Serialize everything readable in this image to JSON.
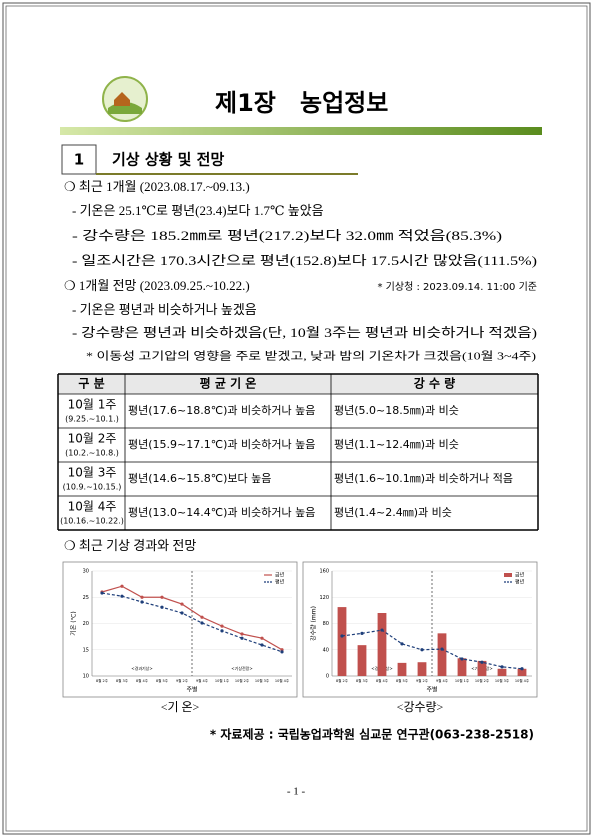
{
  "header": {
    "chapter": "제1장",
    "title": "농업정보"
  },
  "section": {
    "number": "1",
    "title": "기상 상황 및 전망"
  },
  "lines": [
    "❍ 최근 1개월 (2023.08.17.~09.13.)",
    "- 기온은 25.1℃로 평년(23.4)보다 1.7℃ 높았음",
    "- 강수량은 185.2㎜로 평년(217.2)보다 32.0㎜ 적었음(85.3%)",
    "- 일조시간은 170.3시간으로 평년(152.8)보다 17.5시간 많았음(111.5%)",
    "❍ 1개월 전망 (2023.09.25.~10.22.)",
    "- 기온은 평년과 비슷하거나 높겠음",
    "- 강수량은 평년과 비슷하겠음(단, 10월 3주는 평년과 비슷하거나 적겠음)",
    "* 이동성 고기압의 영향을 주로 받겠고, 낮과 밤의 기온차가 크겠음(10월 3~4주)"
  ],
  "note": "* 기상청 : 2023.09.14. 11:00 기준",
  "table": {
    "header": [
      "구 분",
      "평 균 기 온",
      "강 수 량"
    ],
    "rows": [
      [
        "10월 1주",
        "(9.25.~10.1.)",
        "평년(17.6~18.8℃)과 비슷하거나 높음",
        "평년(5.0~18.5㎜)과 비슷"
      ],
      [
        "10월 2주",
        "(10.2.~10.8.)",
        "평년(15.9~17.1℃)과 비슷하거나 높음",
        "평년(1.1~12.4㎜)과 비슷"
      ],
      [
        "10월 3주",
        "(10.9.~10.15.)",
        "평년(14.6~15.8℃)보다 높음",
        "평년(1.6~10.1㎜)과 비슷하거나 적음"
      ],
      [
        "10월 4주",
        "(10.16.~10.22.)",
        "평년(13.0~14.4℃)과 비슷하거나 높음",
        "평년(1.4~2.4㎜)과 비슷"
      ]
    ]
  },
  "subsection": "❍ 최근 기상 경과와 전망",
  "chart_data": [
    {
      "type": "line",
      "y_label": "기온 (℃)",
      "x_label": "주별",
      "categories": [
        "8월 2주",
        "8월 3주",
        "8월 4주",
        "8월 5주",
        "9월 2주",
        "9월 4주",
        "10월 1주",
        "10월 2주",
        "10월 3주",
        "10월 4주"
      ],
      "ylim": [
        10,
        30
      ],
      "yticks": [
        10,
        15,
        20,
        25,
        30
      ],
      "legend": "top-right",
      "annotations": [
        "<경과기상>",
        "<기상전망>"
      ],
      "series": [
        {
          "name": "금년",
          "color": "#c0504d",
          "values": [
            26.0,
            27.1,
            25.0,
            25.0,
            23.7,
            21.2,
            19.5,
            18.0,
            17.2,
            15.0
          ]
        },
        {
          "name": "평년",
          "color": "#1f3f7a",
          "dash": true,
          "values": [
            25.8,
            25.2,
            24.1,
            23.1,
            22.0,
            20.1,
            18.6,
            17.2,
            15.9,
            14.6
          ]
        }
      ]
    },
    {
      "type": "bar_line",
      "y_label": "강수량 (mm)",
      "x_label": "주별",
      "categories": [
        "8월 2주",
        "8월 3주",
        "8월 4주",
        "8월 5주",
        "9월 2주",
        "9월 4주",
        "10월 1주",
        "10월 2주",
        "10월 3주",
        "10월 4주"
      ],
      "ylim": [
        0,
        160
      ],
      "yticks": [
        0,
        40,
        80,
        120,
        160
      ],
      "legend": "top-right",
      "annotations": [
        "<경과기상>",
        "<기상전망>"
      ],
      "series": [
        {
          "name": "금년",
          "kind": "bar",
          "color": "#c0504d",
          "values": [
            105,
            47,
            96,
            20,
            21,
            65,
            27,
            23,
            11,
            11
          ]
        },
        {
          "name": "평년",
          "kind": "line",
          "color": "#1f3f7a",
          "dash": true,
          "values": [
            61,
            65,
            70,
            49,
            40,
            41,
            26,
            21,
            14,
            11
          ]
        }
      ]
    }
  ],
  "captions": [
    "<기 온>",
    "<강수량>"
  ],
  "source": "* 자료제공 : 국립농업과학원 심교문 연구관(063-238-2518)",
  "page_number": "- 1 -"
}
